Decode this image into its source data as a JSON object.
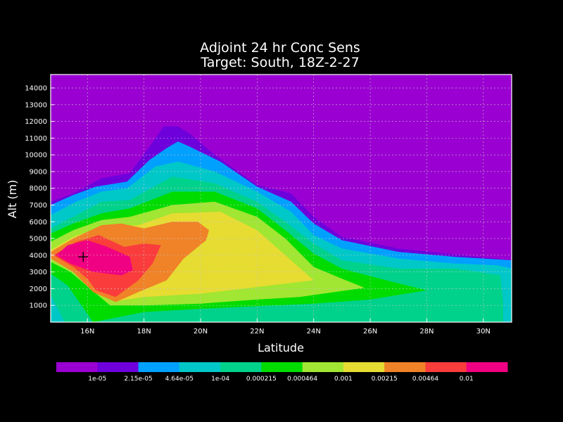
{
  "chart_data": {
    "type": "heatmap",
    "title": "Adjoint 24 hr Conc Sens",
    "subtitle": "Target: South, 18Z-2-27",
    "xlabel": "Latitude",
    "ylabel": "Alt (m)",
    "xlim": [
      14.7,
      31.0
    ],
    "ylim": [
      0,
      14800
    ],
    "x_ticks": [
      {
        "value": 16,
        "label": "16N"
      },
      {
        "value": 18,
        "label": "18N"
      },
      {
        "value": 20,
        "label": "20N"
      },
      {
        "value": 22,
        "label": "22N"
      },
      {
        "value": 24,
        "label": "24N"
      },
      {
        "value": 26,
        "label": "26N"
      },
      {
        "value": 28,
        "label": "28N"
      },
      {
        "value": 30,
        "label": "30N"
      }
    ],
    "y_ticks": [
      {
        "value": 1000,
        "label": "1000"
      },
      {
        "value": 2000,
        "label": "2000"
      },
      {
        "value": 3000,
        "label": "3000"
      },
      {
        "value": 4000,
        "label": "4000"
      },
      {
        "value": 5000,
        "label": "5000"
      },
      {
        "value": 6000,
        "label": "6000"
      },
      {
        "value": 7000,
        "label": "7000"
      },
      {
        "value": 8000,
        "label": "8000"
      },
      {
        "value": 9000,
        "label": "9000"
      },
      {
        "value": 10000,
        "label": "10000"
      },
      {
        "value": 11000,
        "label": "11000"
      },
      {
        "value": 12000,
        "label": "12000"
      },
      {
        "value": 13000,
        "label": "13000"
      },
      {
        "value": 14000,
        "label": "14000"
      }
    ],
    "grid": true,
    "background_color": "#9b00d2",
    "colorbar": {
      "colors": [
        "#9b00d2",
        "#6e00dc",
        "#00a0ff",
        "#00c8c8",
        "#00d28c",
        "#00dc00",
        "#a0e632",
        "#e6dc32",
        "#f08228",
        "#fa3c3c",
        "#f00082"
      ],
      "labels": [
        "1e-05",
        "2.15e-05",
        "4.64e-05",
        "1e-04",
        "0.000215",
        "0.000464",
        "0.001",
        "0.00215",
        "0.00464",
        "0.01"
      ]
    },
    "marker": {
      "type": "cross",
      "x": 15.85,
      "y": 3900
    },
    "contours": [
      {
        "level": 1,
        "color": "#6e00dc",
        "points": [
          [
            14.7,
            0
          ],
          [
            31,
            0
          ],
          [
            31,
            3700
          ],
          [
            29,
            4050
          ],
          [
            27,
            4400
          ],
          [
            25,
            5100
          ],
          [
            24,
            6300
          ],
          [
            23.2,
            7700
          ],
          [
            22,
            8200
          ],
          [
            20.5,
            10000
          ],
          [
            19.6,
            11300
          ],
          [
            19.2,
            11700
          ],
          [
            18.7,
            11700
          ],
          [
            18.2,
            10500
          ],
          [
            17.5,
            8900
          ],
          [
            16.5,
            8600
          ],
          [
            15.5,
            7700
          ],
          [
            14.7,
            7200
          ]
        ]
      },
      {
        "level": 2,
        "color": "#00a0ff",
        "points": [
          [
            14.7,
            0
          ],
          [
            31,
            0
          ],
          [
            31,
            3700
          ],
          [
            29,
            3900
          ],
          [
            27,
            4200
          ],
          [
            25,
            4900
          ],
          [
            24,
            5900
          ],
          [
            23.2,
            7200
          ],
          [
            22,
            8100
          ],
          [
            20.7,
            9600
          ],
          [
            19.6,
            10500
          ],
          [
            19.2,
            10800
          ],
          [
            18.8,
            10400
          ],
          [
            18.2,
            9700
          ],
          [
            17.4,
            8400
          ],
          [
            16.3,
            8100
          ],
          [
            15.5,
            7600
          ],
          [
            14.7,
            7000
          ]
        ]
      },
      {
        "level": 3,
        "color": "#00c8c8",
        "points": [
          [
            14.7,
            0.5
          ],
          [
            31,
            0
          ],
          [
            31,
            3200
          ],
          [
            30.5,
            3400
          ],
          [
            29,
            3500
          ],
          [
            27,
            3800
          ],
          [
            25,
            4400
          ],
          [
            24,
            5200
          ],
          [
            23.2,
            6600
          ],
          [
            22,
            7800
          ],
          [
            20.5,
            9000
          ],
          [
            19.2,
            9600
          ],
          [
            18.4,
            9300
          ],
          [
            17.4,
            8000
          ],
          [
            16.5,
            7800
          ],
          [
            15.6,
            7200
          ],
          [
            14.7,
            6400
          ],
          [
            14.7,
            0
          ]
        ]
      },
      {
        "level": 4,
        "color": "#00d28c",
        "points": [
          [
            15.2,
            0
          ],
          [
            30.7,
            0
          ],
          [
            30.7,
            1200
          ],
          [
            30.6,
            2800
          ],
          [
            29,
            3200
          ],
          [
            27,
            3200
          ],
          [
            25,
            3700
          ],
          [
            24,
            4700
          ],
          [
            23,
            6000
          ],
          [
            22,
            7200
          ],
          [
            20.5,
            8300
          ],
          [
            19,
            8700
          ],
          [
            17.5,
            7300
          ],
          [
            16.5,
            7200
          ],
          [
            15.5,
            6300
          ],
          [
            14.7,
            5600
          ],
          [
            14.7,
            1600
          ]
        ]
      },
      {
        "level": 5,
        "color": "#00dc00",
        "points": [
          [
            16.2,
            0.8
          ],
          [
            18,
            600
          ],
          [
            20,
            800
          ],
          [
            24,
            1100
          ],
          [
            26,
            1350
          ],
          [
            28,
            1900
          ],
          [
            26.8,
            2400
          ],
          [
            25,
            3200
          ],
          [
            24,
            4100
          ],
          [
            23,
            5500
          ],
          [
            22,
            6800
          ],
          [
            20.5,
            7800
          ],
          [
            19,
            7800
          ],
          [
            17.5,
            6800
          ],
          [
            16.5,
            6500
          ],
          [
            15.5,
            5900
          ],
          [
            14.7,
            5300
          ],
          [
            14.7,
            2900
          ],
          [
            15.3,
            2200
          ]
        ]
      },
      {
        "level": 6,
        "color": "#a0e632",
        "points": [
          [
            16.8,
            1000
          ],
          [
            18,
            1000
          ],
          [
            20,
            1100
          ],
          [
            22,
            1350
          ],
          [
            23.5,
            1500
          ],
          [
            25.8,
            2050
          ],
          [
            25,
            2600
          ],
          [
            24,
            3300
          ],
          [
            23,
            5000
          ],
          [
            22,
            6300
          ],
          [
            20.5,
            7200
          ],
          [
            19,
            7000
          ],
          [
            17.5,
            6300
          ],
          [
            16.5,
            6100
          ],
          [
            15.5,
            5500
          ],
          [
            14.7,
            4800
          ],
          [
            14.7,
            3600
          ],
          [
            15.4,
            3000
          ]
        ]
      },
      {
        "level": 7,
        "color": "#e6dc32",
        "points": [
          [
            17,
            1250
          ],
          [
            18,
            1500
          ],
          [
            20,
            1700
          ],
          [
            22,
            2100
          ],
          [
            24,
            2500
          ],
          [
            23,
            4000
          ],
          [
            22,
            5500
          ],
          [
            20.7,
            6600
          ],
          [
            19,
            6500
          ],
          [
            17.8,
            5800
          ],
          [
            16.5,
            5700
          ],
          [
            15.5,
            5100
          ],
          [
            14.7,
            4300
          ],
          [
            14.7,
            3800
          ],
          [
            15.5,
            3300
          ]
        ]
      },
      {
        "level": 8,
        "color": "#f08228",
        "points": [
          [
            17,
            1200
          ],
          [
            17.8,
            1800
          ],
          [
            18.8,
            2500
          ],
          [
            19.4,
            3800
          ],
          [
            20.2,
            4900
          ],
          [
            20.3,
            5500
          ],
          [
            19.9,
            6000
          ],
          [
            19,
            6000
          ],
          [
            18,
            5600
          ],
          [
            17.2,
            5900
          ],
          [
            16.5,
            5800
          ],
          [
            15.5,
            5000
          ],
          [
            14.7,
            4200
          ],
          [
            14.7,
            3800
          ],
          [
            15.5,
            3000
          ],
          [
            16.2,
            1800
          ]
        ]
      },
      {
        "level": 9,
        "color": "#fa3c3c",
        "points": [
          [
            17,
            1500
          ],
          [
            17.8,
            2500
          ],
          [
            18.3,
            3500
          ],
          [
            18.6,
            4600
          ],
          [
            18,
            4700
          ],
          [
            17.3,
            4500
          ],
          [
            16.4,
            5200
          ],
          [
            15.6,
            4800
          ],
          [
            14.8,
            4000
          ],
          [
            15.5,
            3300
          ],
          [
            16,
            2600
          ],
          [
            16.3,
            1900
          ]
        ]
      },
      {
        "level": 10,
        "color": "#f00082",
        "points": [
          [
            15.4,
            3500
          ],
          [
            16.2,
            3000
          ],
          [
            17.2,
            2800
          ],
          [
            17.6,
            3100
          ],
          [
            17.5,
            3900
          ],
          [
            16.7,
            4500
          ],
          [
            16,
            4900
          ],
          [
            15.3,
            4600
          ],
          [
            14.9,
            4000
          ]
        ]
      }
    ]
  }
}
